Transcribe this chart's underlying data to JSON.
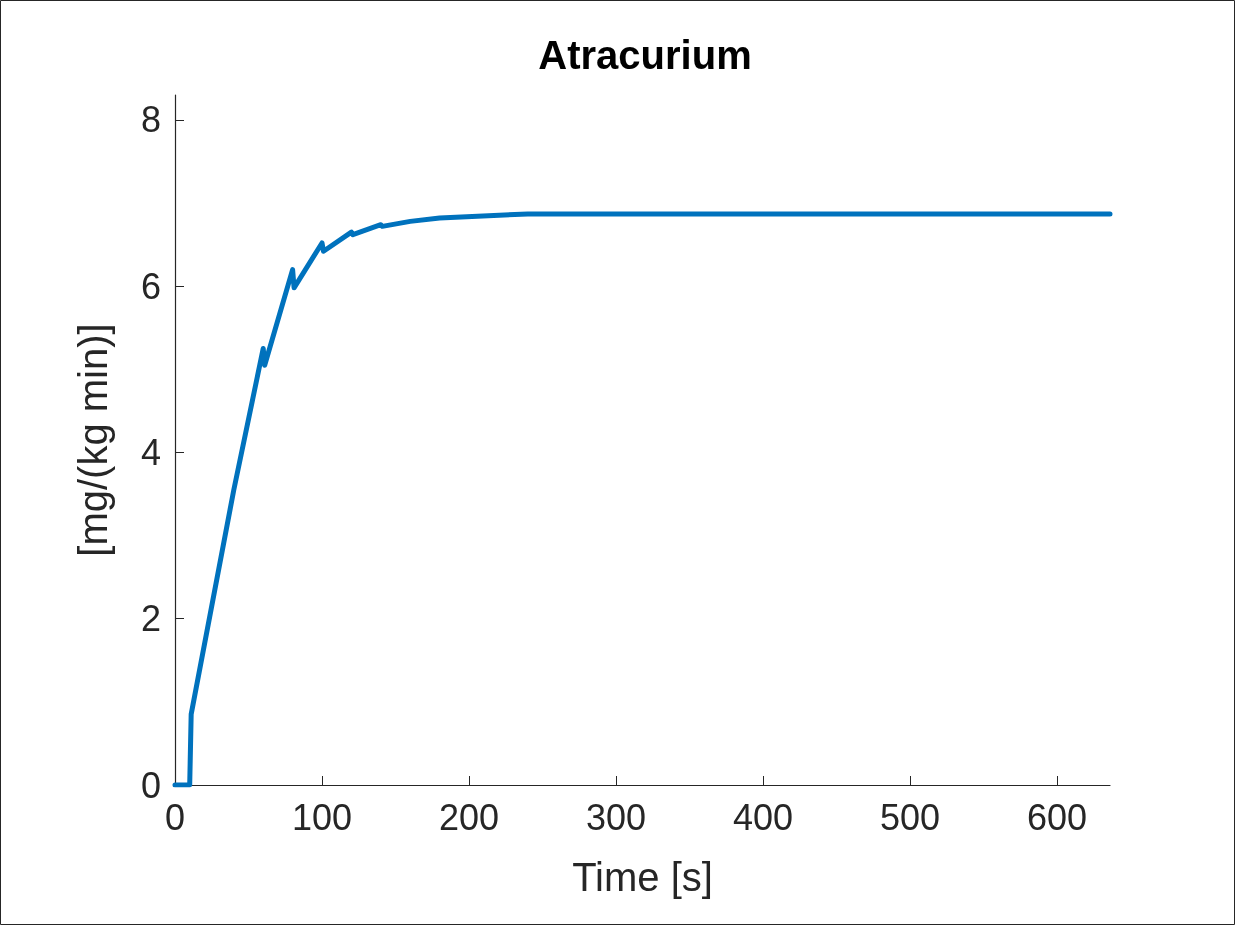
{
  "chart_data": {
    "type": "line",
    "title": "Atracurium",
    "xlabel": "Time [s]",
    "ylabel": "[mg/(kg min)]",
    "x": [
      0,
      10,
      11,
      40,
      60,
      61,
      80,
      81,
      100,
      101,
      120,
      121,
      140,
      141,
      160,
      180,
      240,
      636
    ],
    "series": [
      {
        "color": "#0072bd",
        "values": [
          0,
          0,
          0.85,
          3.55,
          5.25,
          5.05,
          6.2,
          5.98,
          6.52,
          6.42,
          6.65,
          6.62,
          6.74,
          6.72,
          6.78,
          6.82,
          6.87,
          6.87
        ]
      }
    ],
    "xlim": [
      0,
      636
    ],
    "xticks": [
      0,
      100,
      200,
      300,
      400,
      500,
      600
    ],
    "ylim": [
      0,
      8.3
    ],
    "yticks": [
      0,
      2,
      4,
      6,
      8
    ],
    "grid": false,
    "marker": "none",
    "line_style": "solid"
  }
}
